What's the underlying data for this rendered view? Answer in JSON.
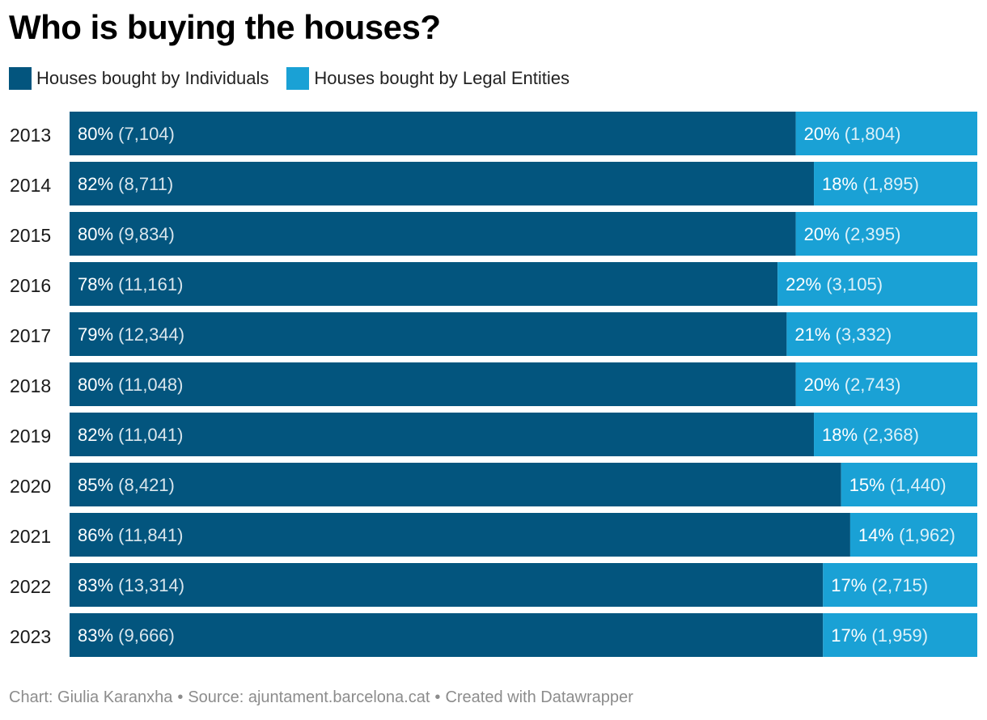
{
  "title": "Who is buying the houses?",
  "legend": [
    {
      "label": "Houses bought by Individuals",
      "color": "#03557e"
    },
    {
      "label": "Houses bought by Legal Entities",
      "color": "#1aa1d5"
    }
  ],
  "chart_data": {
    "type": "bar",
    "orientation": "horizontal",
    "stacked": true,
    "normalized": true,
    "title": "Who is buying the houses?",
    "xlabel": "",
    "ylabel": "",
    "xlim": [
      0,
      100
    ],
    "categories": [
      "2013",
      "2014",
      "2015",
      "2016",
      "2017",
      "2018",
      "2019",
      "2020",
      "2021",
      "2022",
      "2023"
    ],
    "series": [
      {
        "name": "Houses bought by Individuals",
        "color": "#03557e",
        "values": [
          80,
          82,
          80,
          78,
          79,
          80,
          82,
          85,
          86,
          83,
          83
        ],
        "counts": [
          "7,104",
          "8,711",
          "9,834",
          "11,161",
          "12,344",
          "11,048",
          "11,041",
          "8,421",
          "11,841",
          "13,314",
          "9,666"
        ]
      },
      {
        "name": "Houses bought by Legal Entities",
        "color": "#1aa1d5",
        "values": [
          20,
          18,
          20,
          22,
          21,
          20,
          18,
          15,
          14,
          17,
          17
        ],
        "counts": [
          "1,804",
          "1,895",
          "2,395",
          "3,105",
          "3,332",
          "2,743",
          "2,368",
          "1,440",
          "1,962",
          "2,715",
          "1,959"
        ]
      }
    ]
  },
  "footer": {
    "chart_by": "Chart: Giulia Karanxha",
    "source": "Source: ajuntament.barcelona.cat",
    "created": "Created with Datawrapper",
    "separator": "•"
  }
}
